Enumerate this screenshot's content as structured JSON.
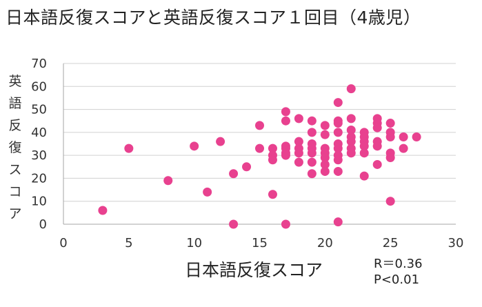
{
  "title": "日本語反復スコアと英語反復スコア１回目（4歳児）",
  "stats": {
    "r": "R＝0.36",
    "p": "P<0.01"
  },
  "chart_data": {
    "type": "scatter",
    "title": "日本語反復スコアと英語反復スコア１回目（4歳児）",
    "xlabel": "日本語反復スコア",
    "ylabel": "英語反復スコア",
    "xlim": [
      0,
      30
    ],
    "ylim": [
      0,
      70
    ],
    "xticks": [
      0,
      5,
      10,
      15,
      20,
      25,
      30
    ],
    "yticks": [
      0,
      10,
      20,
      30,
      40,
      50,
      60,
      70
    ],
    "grid": "horizontal",
    "marker_color": "#e8418f",
    "points": [
      [
        3,
        6
      ],
      [
        5,
        33
      ],
      [
        8,
        19
      ],
      [
        10,
        34
      ],
      [
        11,
        14
      ],
      [
        12,
        36
      ],
      [
        13,
        22
      ],
      [
        13,
        0
      ],
      [
        14,
        25
      ],
      [
        15,
        43
      ],
      [
        15,
        33
      ],
      [
        16,
        33
      ],
      [
        16,
        30
      ],
      [
        16,
        28
      ],
      [
        16,
        13
      ],
      [
        17,
        49
      ],
      [
        17,
        45
      ],
      [
        17,
        34
      ],
      [
        17,
        33
      ],
      [
        17,
        31
      ],
      [
        17,
        30
      ],
      [
        17,
        0
      ],
      [
        18,
        46
      ],
      [
        18,
        36
      ],
      [
        18,
        33
      ],
      [
        18,
        31
      ],
      [
        18,
        27
      ],
      [
        19,
        45
      ],
      [
        19,
        40
      ],
      [
        19,
        35
      ],
      [
        19,
        33
      ],
      [
        19,
        31
      ],
      [
        19,
        27
      ],
      [
        19,
        22
      ],
      [
        20,
        43
      ],
      [
        20,
        39
      ],
      [
        20,
        33
      ],
      [
        20,
        31
      ],
      [
        20,
        29
      ],
      [
        20,
        26
      ],
      [
        20,
        23
      ],
      [
        21,
        53
      ],
      [
        21,
        45
      ],
      [
        21,
        44
      ],
      [
        21,
        40
      ],
      [
        21,
        35
      ],
      [
        21,
        33
      ],
      [
        21,
        30
      ],
      [
        21,
        28
      ],
      [
        21,
        23
      ],
      [
        21,
        1
      ],
      [
        22,
        59
      ],
      [
        22,
        46
      ],
      [
        22,
        41
      ],
      [
        22,
        38
      ],
      [
        22,
        36
      ],
      [
        22,
        33
      ],
      [
        22,
        31
      ],
      [
        23,
        40
      ],
      [
        23,
        38
      ],
      [
        23,
        36
      ],
      [
        23,
        34
      ],
      [
        23,
        31
      ],
      [
        23,
        21
      ],
      [
        24,
        46
      ],
      [
        24,
        44
      ],
      [
        24,
        42
      ],
      [
        24,
        36
      ],
      [
        24,
        34
      ],
      [
        24,
        26
      ],
      [
        25,
        44
      ],
      [
        25,
        40
      ],
      [
        25,
        38
      ],
      [
        25,
        31
      ],
      [
        25,
        29
      ],
      [
        25,
        10
      ],
      [
        26,
        38
      ],
      [
        26,
        33
      ],
      [
        27,
        38
      ]
    ]
  }
}
